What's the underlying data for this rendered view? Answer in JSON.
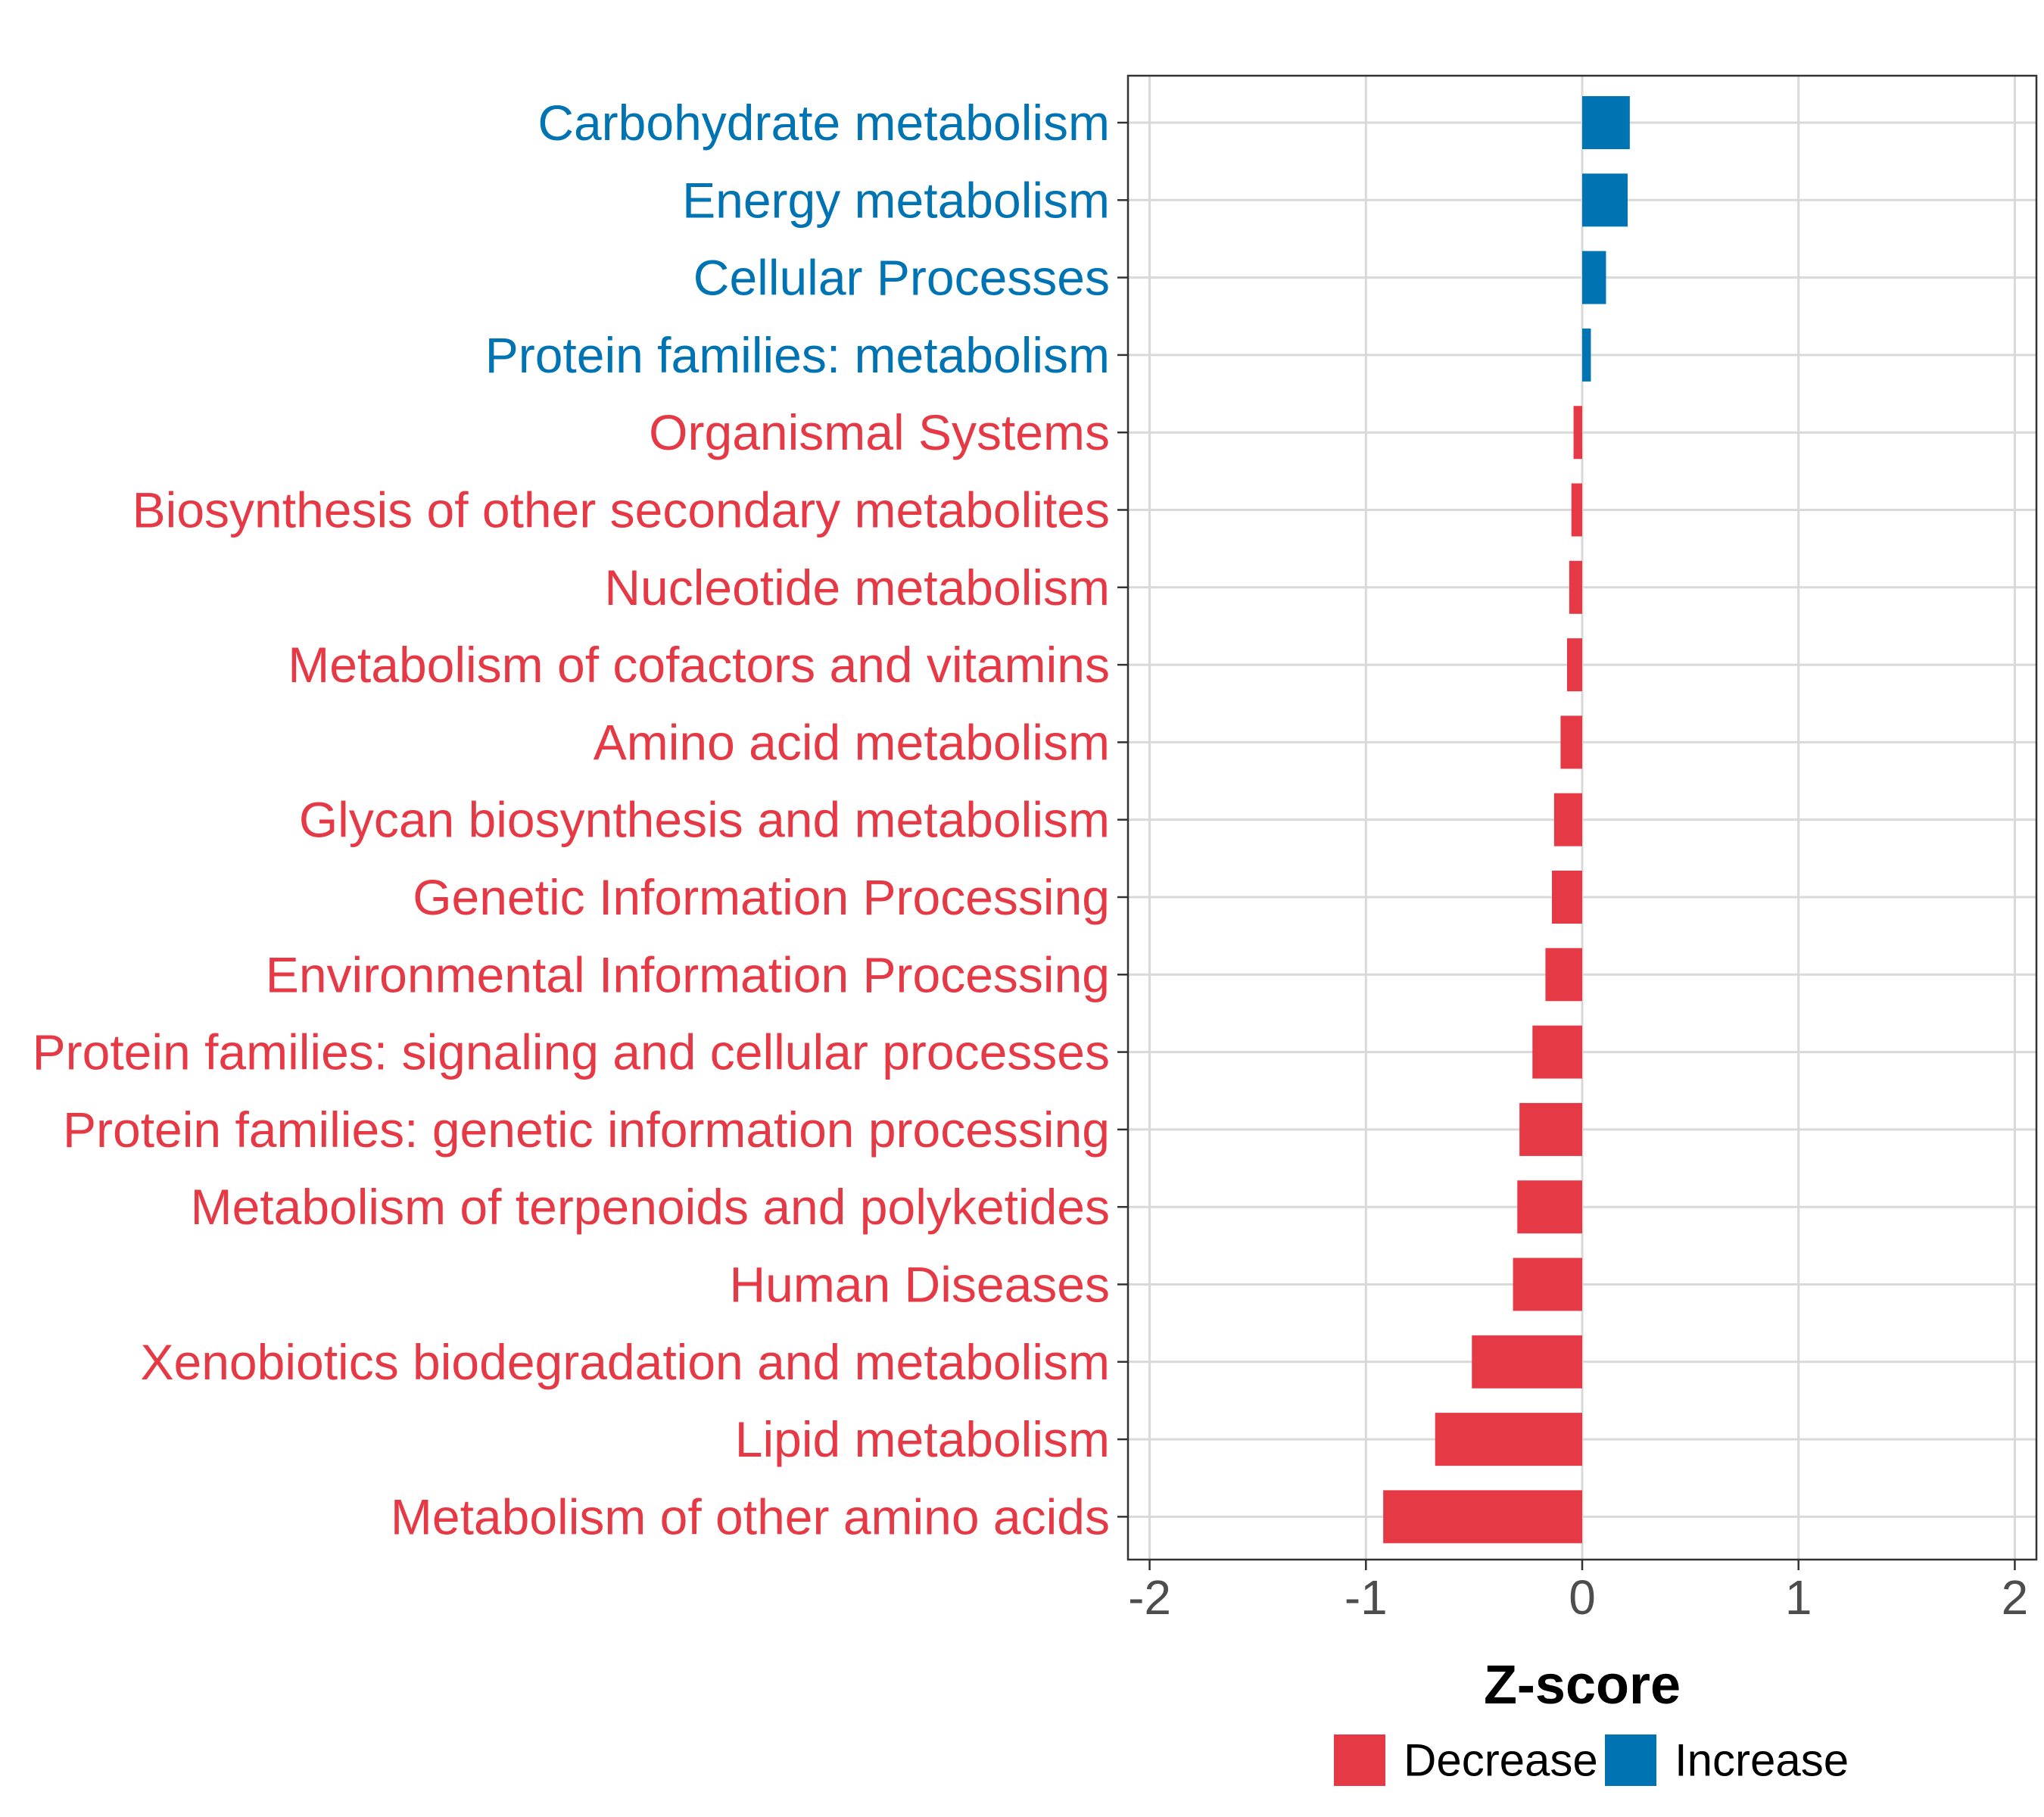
{
  "chart_data": {
    "type": "bar",
    "orientation": "horizontal",
    "title": "",
    "xlabel": "Z-score",
    "ylabel": "",
    "xlim": [
      -2.1,
      2.1
    ],
    "x_ticks": [
      -2,
      -1,
      0,
      1,
      2
    ],
    "x_tick_labels": [
      "-2",
      "-1",
      "0",
      "1",
      "2"
    ],
    "grid": true,
    "legend_position": "bottom",
    "colors": {
      "Decrease": "#e63946",
      "Increase": "#0073b3"
    },
    "legend": [
      {
        "key": "Decrease",
        "label": "Decrease"
      },
      {
        "key": "Increase",
        "label": "Increase"
      }
    ],
    "categories": [
      "Carbohydrate metabolism",
      "Energy metabolism",
      "Cellular Processes",
      "Protein families: metabolism",
      "Organismal Systems",
      "Biosynthesis of other secondary metabolites",
      "Nucleotide metabolism",
      "Metabolism of cofactors and vitamins",
      "Amino acid metabolism",
      "Glycan biosynthesis and metabolism",
      "Genetic Information Processing",
      "Environmental Information Processing",
      "Protein families: signaling and cellular processes",
      "Protein families: genetic information processing",
      "Metabolism of terpenoids and polyketides",
      "Human Diseases",
      "Xenobiotics biodegradation and metabolism",
      "Lipid metabolism",
      "Metabolism of other amino acids"
    ],
    "values": [
      0.22,
      0.21,
      0.11,
      0.04,
      -0.04,
      -0.05,
      -0.06,
      -0.07,
      -0.1,
      -0.13,
      -0.14,
      -0.17,
      -0.23,
      -0.29,
      -0.3,
      -0.32,
      -0.51,
      -0.68,
      -0.92
    ],
    "groups": [
      "Increase",
      "Increase",
      "Increase",
      "Increase",
      "Decrease",
      "Decrease",
      "Decrease",
      "Decrease",
      "Decrease",
      "Decrease",
      "Decrease",
      "Decrease",
      "Decrease",
      "Decrease",
      "Decrease",
      "Decrease",
      "Decrease",
      "Decrease",
      "Decrease"
    ]
  }
}
